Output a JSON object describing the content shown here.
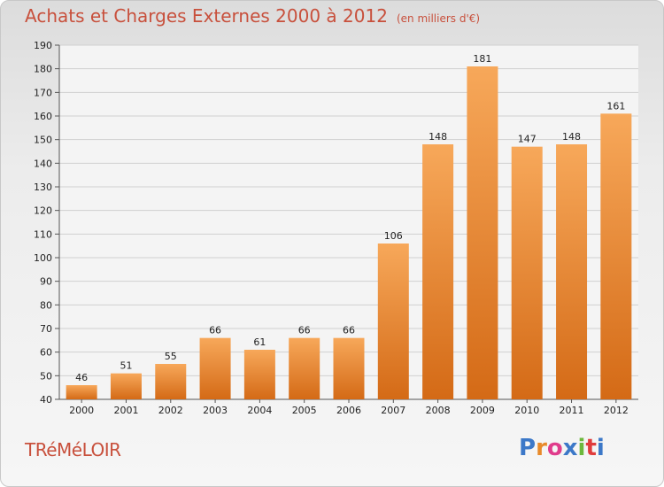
{
  "header": {
    "title": "Achats et Charges Externes 2000 à 2012",
    "subtitle": "(en milliers d'€)"
  },
  "footer": {
    "town": "TRéMéLOIR",
    "logo": "Proxiti",
    "logo_colors": [
      "#3c78c8",
      "#e88a2a",
      "#e03c8c",
      "#3c78c8",
      "#6cb83c",
      "#e03c3c",
      "#3c78c8"
    ]
  },
  "colors": {
    "bar_top": "#f7a85a",
    "bar_bottom": "#d46a16",
    "axis_text": "#222222",
    "grid": "#d0d0d0"
  },
  "chart_data": {
    "type": "bar",
    "categories": [
      "2000",
      "2001",
      "2002",
      "2003",
      "2004",
      "2005",
      "2006",
      "2007",
      "2008",
      "2009",
      "2010",
      "2011",
      "2012"
    ],
    "values": [
      46,
      51,
      55,
      66,
      61,
      66,
      66,
      106,
      148,
      181,
      147,
      148,
      161
    ],
    "ylim": [
      40,
      190
    ],
    "yticks": [
      40,
      50,
      60,
      70,
      80,
      90,
      100,
      110,
      120,
      130,
      140,
      150,
      160,
      170,
      180,
      190
    ],
    "grid": true,
    "title": "Achats et Charges Externes 2000 à 2012",
    "xlabel": "",
    "ylabel": ""
  }
}
